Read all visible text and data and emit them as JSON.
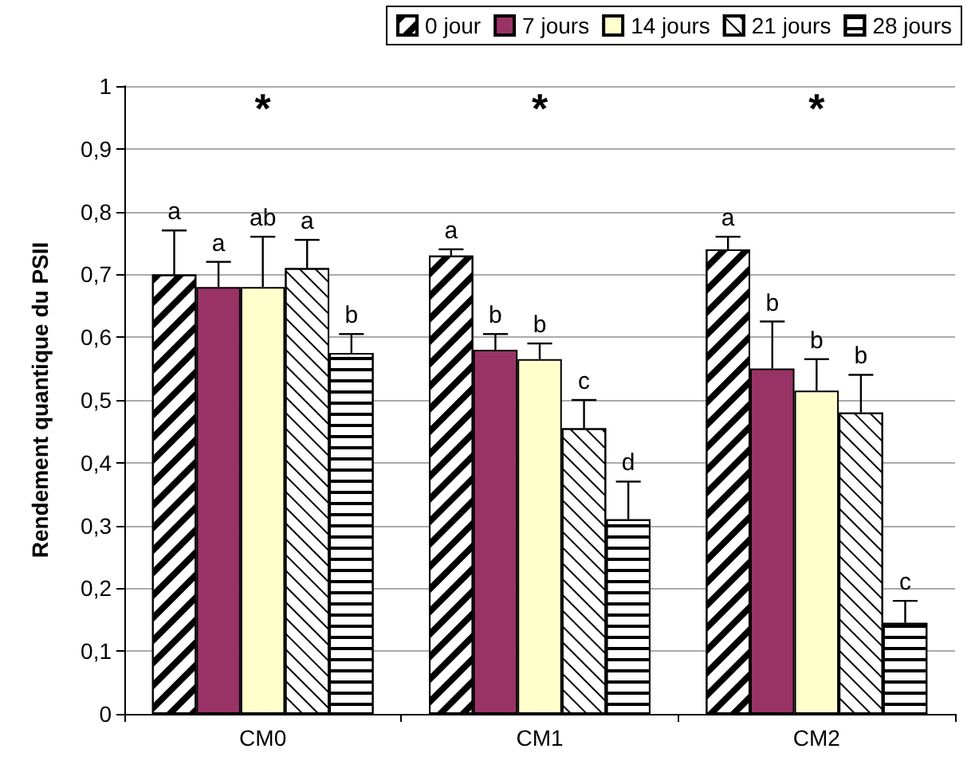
{
  "chart_data": {
    "type": "bar",
    "ylabel": "Rendement quantique du PSII",
    "categories": [
      "CM0",
      "CM1",
      "CM2"
    ],
    "series": [
      {
        "name": "0 jour",
        "color": "#ffffff",
        "values": [
          0.7,
          0.73,
          0.74
        ],
        "errors": [
          0.07,
          0.01,
          0.02
        ],
        "value_labels": [
          "a",
          "a",
          "a"
        ]
      },
      {
        "name": "7 jours",
        "color": "#993366",
        "values": [
          0.68,
          0.58,
          0.55
        ],
        "errors": [
          0.04,
          0.025,
          0.075
        ],
        "value_labels": [
          "a",
          "b",
          "b"
        ]
      },
      {
        "name": "14 jours",
        "color": "#ffffcc",
        "values": [
          0.68,
          0.565,
          0.515
        ],
        "errors": [
          0.08,
          0.025,
          0.05
        ],
        "value_labels": [
          "ab",
          "b",
          "b"
        ]
      },
      {
        "name": "21 jours",
        "color": "#ffffff",
        "values": [
          0.71,
          0.455,
          0.48
        ],
        "errors": [
          0.045,
          0.045,
          0.06
        ],
        "value_labels": [
          "a",
          "c",
          "b"
        ]
      },
      {
        "name": "28 jours",
        "color": "#ffffff",
        "values": [
          0.575,
          0.31,
          0.145
        ],
        "errors": [
          0.03,
          0.06,
          0.035
        ],
        "value_labels": [
          "b",
          "d",
          "c"
        ]
      }
    ],
    "annotations": [
      "*",
      "*",
      "*"
    ],
    "ylim": [
      0,
      1
    ],
    "yticks": [
      0,
      {
        "value": 0.1,
        "label": "0,1"
      },
      {
        "value": 0.2,
        "label": "0,2"
      },
      {
        "value": 0.3,
        "label": "0,3"
      },
      {
        "value": 0.4,
        "label": "0,4"
      },
      {
        "value": 0.5,
        "label": "0,5"
      },
      {
        "value": 0.6,
        "label": "0,6"
      },
      {
        "value": 0.7,
        "label": "0,7"
      },
      {
        "value": 0.8,
        "label": "0,8"
      },
      {
        "value": 0.9,
        "label": "0,9"
      },
      1
    ],
    "grid": "y",
    "legend": "top"
  }
}
